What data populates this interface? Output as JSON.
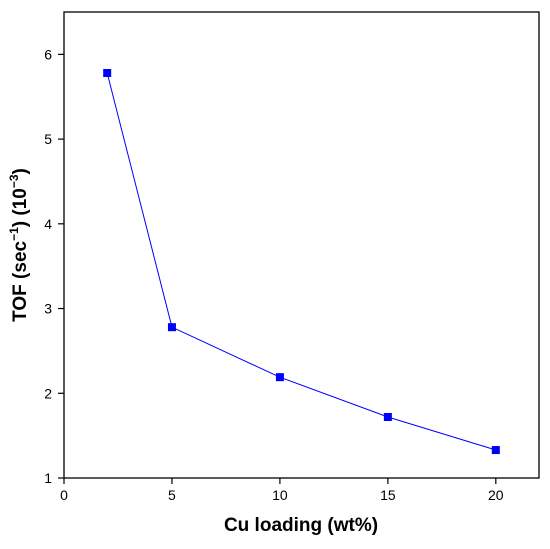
{
  "chart_data": {
    "type": "line",
    "x": [
      2,
      5,
      10,
      15,
      20
    ],
    "series": [
      {
        "values": [
          5.78,
          2.78,
          2.19,
          1.72,
          1.33
        ],
        "color": "#0000ff",
        "marker": "square"
      }
    ],
    "xlabel": "Cu loading (wt%)",
    "ylabel": {
      "main": "TOF (sec",
      "sup1": "−1",
      "mid": ") (10",
      "sup2": "−3",
      "end": ")"
    },
    "xlim": [
      0,
      22
    ],
    "ylim": [
      1,
      6.5
    ],
    "xticks": [
      "0",
      "5",
      "10",
      "15",
      "20"
    ],
    "yticks": [
      "1",
      "2",
      "3",
      "4",
      "5",
      "6"
    ],
    "grid": false,
    "legend": "none"
  }
}
